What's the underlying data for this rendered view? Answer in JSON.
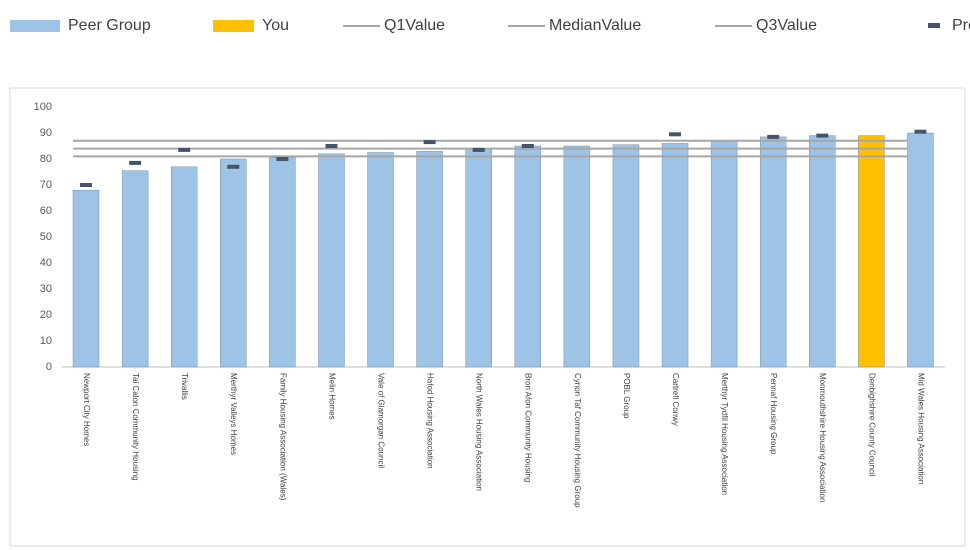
{
  "chart_data": {
    "type": "bar",
    "categories": [
      "Newport City Homes",
      "Tai Calon Community Housing",
      "Trivallis",
      "Merthyr Valleys Homes",
      "Family Housing Association (Wales)",
      "Melin Homes",
      "Vale of Glamorgan Council",
      "Hafod Housing Association",
      "North Wales Housing Association",
      "Bron Afon Community Housing",
      "Cynon Taf Community Housing Group",
      "POBL Group",
      "Cartrefi Conwy",
      "Merthyr Tydfil Housing Association",
      "Pennaf Housing Group",
      "Monmouthshire Housing Association",
      "Denbighshire County Council",
      "Mid Wales Housing Association"
    ],
    "series": [
      {
        "name": "Peer Group",
        "color": "#9dc3e6",
        "values": [
          68,
          75.5,
          77,
          80,
          80.5,
          82,
          82.5,
          83,
          84,
          85,
          85,
          85.5,
          86,
          87,
          88.5,
          89,
          null,
          90
        ]
      },
      {
        "name": "You",
        "color": "#ffc000",
        "values": [
          null,
          null,
          null,
          null,
          null,
          null,
          null,
          null,
          null,
          null,
          null,
          null,
          null,
          null,
          null,
          null,
          89,
          null
        ]
      },
      {
        "name": "Prev",
        "color": "#44546a",
        "marker": true,
        "values": [
          70,
          78.5,
          83.5,
          77,
          80,
          85,
          null,
          86.5,
          83.5,
          85,
          null,
          null,
          89.5,
          null,
          88.5,
          89,
          null,
          90.5
        ]
      }
    ],
    "reference_lines": [
      {
        "name": "Q1Value",
        "color": "#a6a6a6",
        "value": 81
      },
      {
        "name": "MedianValue",
        "color": "#a6a6a6",
        "value": 84
      },
      {
        "name": "Q3Value",
        "color": "#a6a6a6",
        "value": 87
      }
    ],
    "ylim": [
      0,
      100
    ],
    "yticks": [
      0,
      10,
      20,
      30,
      40,
      50,
      60,
      70,
      80,
      90,
      100
    ],
    "grid": false
  }
}
